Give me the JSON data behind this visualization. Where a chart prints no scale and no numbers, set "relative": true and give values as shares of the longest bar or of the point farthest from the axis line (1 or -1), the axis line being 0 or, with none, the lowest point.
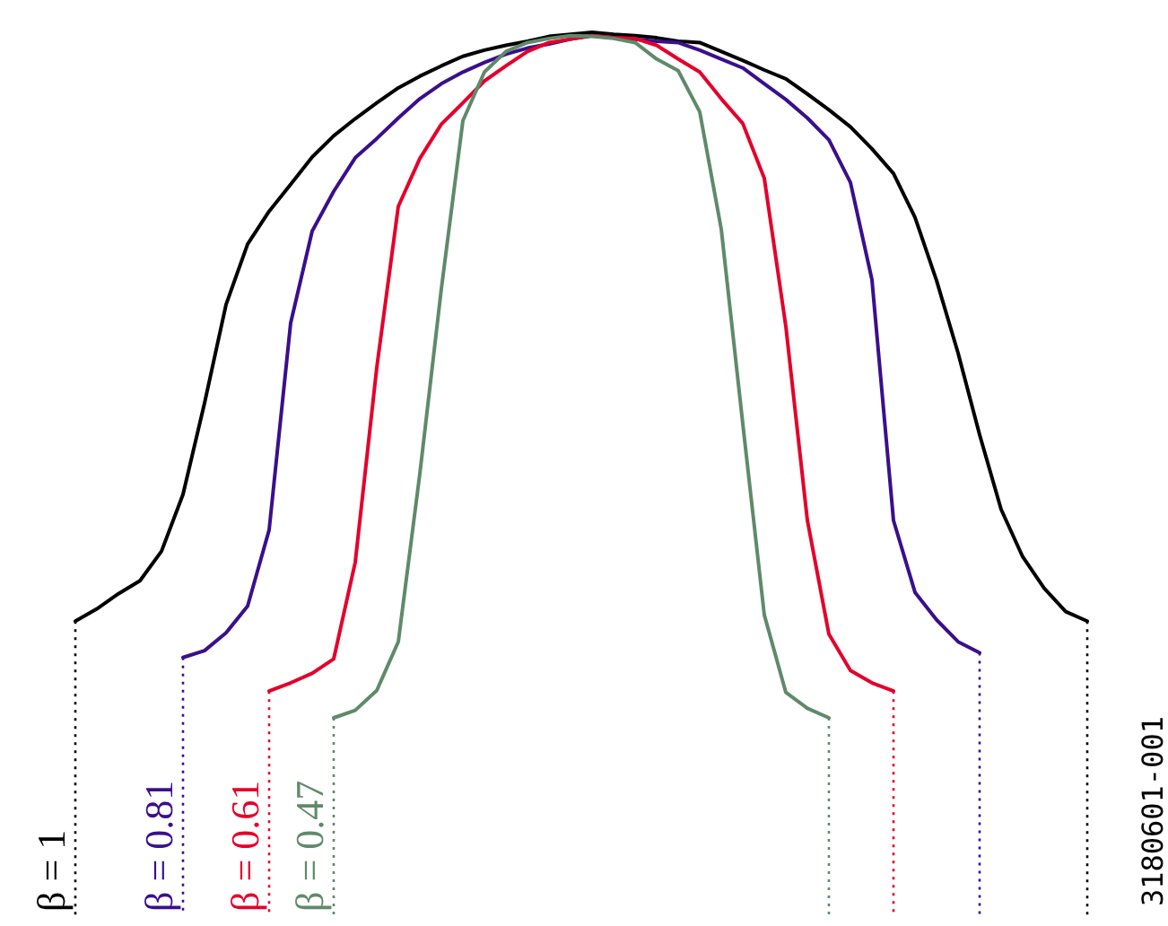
{
  "chart_data": {
    "type": "line",
    "relative": true,
    "categories": [
      null,
      null,
      null,
      null,
      null,
      null,
      null,
      null,
      null,
      null,
      null,
      null,
      null,
      null,
      null,
      null,
      null,
      null,
      null,
      null,
      null,
      null,
      null,
      null,
      null,
      null,
      null,
      null,
      null,
      null,
      null,
      null,
      null,
      null,
      null,
      null,
      null,
      null,
      null,
      null,
      null,
      null,
      null,
      null,
      null,
      null,
      null,
      null
    ],
    "annotations": [
      "3180601-001"
    ],
    "series": [
      {
        "name": "β = 1",
        "color": "#000000",
        "values": [
          0.141,
          0.159,
          0.181,
          0.2,
          0.243,
          0.326,
          0.459,
          0.603,
          0.691,
          0.739,
          0.778,
          0.818,
          0.849,
          0.874,
          0.897,
          0.919,
          0.936,
          0.951,
          0.965,
          0.974,
          0.981,
          0.987,
          0.994,
          0.997,
          1,
          0.997,
          0.995,
          0.992,
          0.987,
          0.985,
          0.972,
          0.959,
          0.945,
          0.932,
          0.91,
          0.887,
          0.862,
          0.83,
          0.794,
          0.73,
          0.638,
          0.532,
          0.413,
          0.304,
          0.235,
          0.189,
          0.155,
          0.141
        ]
      },
      {
        "name": "β = 0.81",
        "color": "#3a0f8c",
        "values": [
          null,
          null,
          null,
          null,
          null,
          0.088,
          0.098,
          0.124,
          0.163,
          0.274,
          0.576,
          0.71,
          0.768,
          0.817,
          0.845,
          0.875,
          0.903,
          0.925,
          0.942,
          0.956,
          0.968,
          0.977,
          0.983,
          0.99,
          0.995,
          0.992,
          0.99,
          0.987,
          0.985,
          0.974,
          0.961,
          0.948,
          0.925,
          0.902,
          0.875,
          0.843,
          0.781,
          0.639,
          0.288,
          0.183,
          0.143,
          0.111,
          0.095,
          null,
          null,
          null,
          null,
          null
        ]
      },
      {
        "name": "β = 0.61",
        "color": "#e4002b",
        "values": [
          null,
          null,
          null,
          null,
          null,
          null,
          null,
          null,
          null,
          0.039,
          0.051,
          0.065,
          0.086,
          0.227,
          0.511,
          0.746,
          0.816,
          0.866,
          0.897,
          0.929,
          0.951,
          0.972,
          0.985,
          0.99,
          0.995,
          0.992,
          0.991,
          0.981,
          0.961,
          0.942,
          0.903,
          0.867,
          0.787,
          0.571,
          0.288,
          0.122,
          0.069,
          0.051,
          0.039,
          null,
          null,
          null,
          null,
          null,
          null,
          null,
          null,
          null
        ]
      },
      {
        "name": "β = 0.47",
        "color": "#5f8a6a",
        "values": [
          null,
          null,
          null,
          null,
          null,
          null,
          null,
          null,
          null,
          null,
          null,
          null,
          0,
          0.011,
          0.04,
          0.111,
          0.356,
          0.626,
          0.871,
          0.942,
          0.972,
          0.985,
          0.991,
          0.995,
          0.994,
          0.991,
          0.985,
          0.961,
          0.944,
          0.884,
          0.713,
          0.429,
          0.15,
          0.037,
          0.014,
          0,
          null,
          null,
          null,
          null,
          null,
          null,
          null,
          null,
          null,
          null,
          null,
          null
        ]
      }
    ]
  }
}
